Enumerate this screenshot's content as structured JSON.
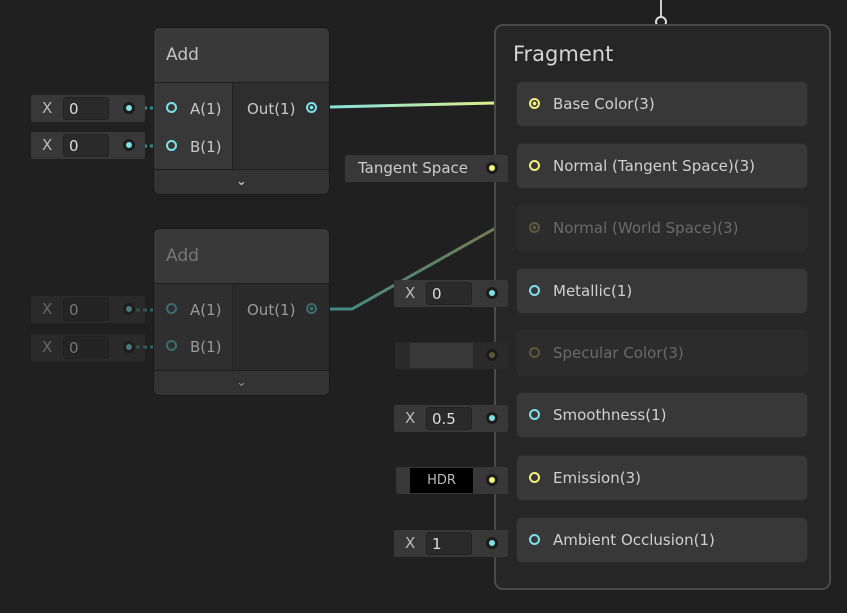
{
  "nodes": [
    {
      "title": "Add",
      "inputs": [
        {
          "label": "A(1)",
          "axis": "X",
          "value": "0"
        },
        {
          "label": "B(1)",
          "axis": "X",
          "value": "0"
        }
      ],
      "output": "Out(1)",
      "active": true
    },
    {
      "title": "Add",
      "inputs": [
        {
          "label": "A(1)",
          "axis": "X",
          "value": "0"
        },
        {
          "label": "B(1)",
          "axis": "X",
          "value": "0"
        }
      ],
      "output": "Out(1)",
      "active": false
    }
  ],
  "fragment": {
    "title": "Fragment",
    "blocks": [
      {
        "label": "Base Color(3)",
        "active": true,
        "input": null
      },
      {
        "label": "Normal (Tangent Space)(3)",
        "active": true,
        "input": {
          "type": "dropdown",
          "value": "Tangent Space"
        }
      },
      {
        "label": "Normal (World Space)(3)",
        "active": false,
        "input": null
      },
      {
        "label": "Metallic(1)",
        "active": true,
        "input": {
          "type": "float",
          "axis": "X",
          "value": "0"
        }
      },
      {
        "label": "Specular Color(3)",
        "active": false,
        "input": {
          "type": "color"
        }
      },
      {
        "label": "Smoothness(1)",
        "active": true,
        "input": {
          "type": "float",
          "axis": "X",
          "value": "0.5"
        }
      },
      {
        "label": "Emission(3)",
        "active": true,
        "input": {
          "type": "hdr-color",
          "value": "HDR"
        }
      },
      {
        "label": "Ambient Occlusion(1)",
        "active": true,
        "input": {
          "type": "float",
          "axis": "X",
          "value": "1"
        }
      }
    ]
  },
  "colors": {
    "float_port": "#7ee0e6",
    "vector3_port": "#f0f27a",
    "background": "#202020"
  },
  "icons": {
    "collapse": "chevron-down-icon"
  }
}
